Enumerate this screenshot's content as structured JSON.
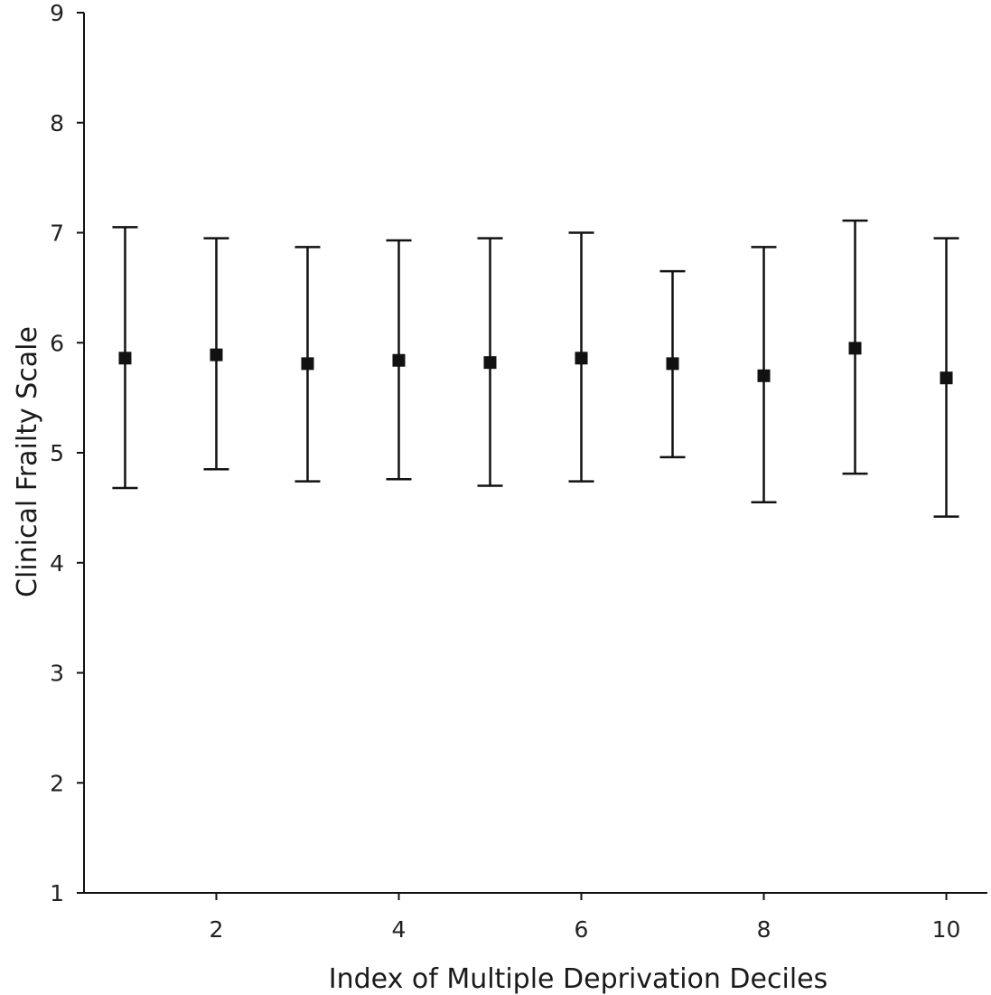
{
  "chart_data": {
    "type": "scatter",
    "title": "",
    "xlabel": "Index of Multiple Deprivation Deciles",
    "ylabel": "Clinical Frailty Scale",
    "xlim": [
      0.55,
      10.45
    ],
    "ylim": [
      1,
      9
    ],
    "xticks": [
      2,
      4,
      6,
      8,
      10
    ],
    "yticks": [
      1,
      2,
      3,
      4,
      5,
      6,
      7,
      8,
      9
    ],
    "grid": false,
    "legend": false,
    "marker": "square",
    "color": "#111111",
    "series": [
      {
        "x": [
          1,
          2,
          3,
          4,
          5,
          6,
          7,
          8,
          9,
          10
        ],
        "y": [
          5.86,
          5.89,
          5.81,
          5.84,
          5.82,
          5.86,
          5.81,
          5.7,
          5.95,
          5.68
        ],
        "lower": [
          4.68,
          4.85,
          4.74,
          4.76,
          4.7,
          4.74,
          4.96,
          4.55,
          4.81,
          4.42
        ],
        "upper": [
          7.05,
          6.95,
          6.87,
          6.93,
          6.95,
          7.0,
          6.65,
          6.87,
          7.11,
          6.95
        ]
      }
    ]
  }
}
